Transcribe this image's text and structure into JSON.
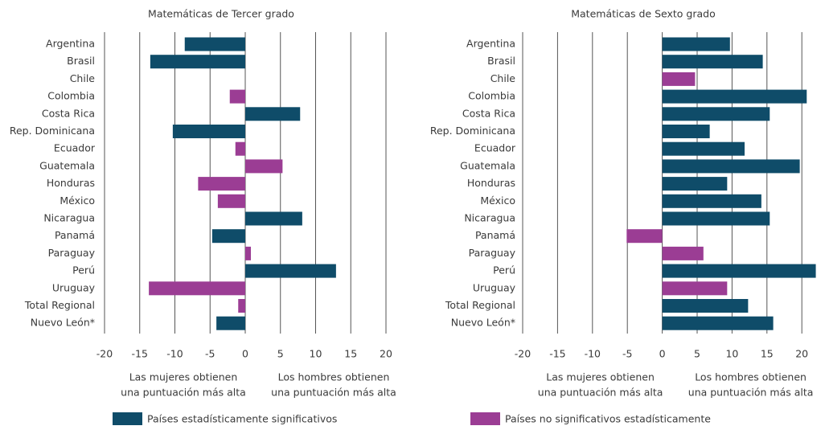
{
  "chart_data": [
    {
      "type": "bar",
      "orientation": "horizontal",
      "title": "Matemáticas de Tercer grado",
      "categories": [
        "Argentina",
        "Brasil",
        "Chile",
        "Colombia",
        "Costa Rica",
        "Rep. Dominicana",
        "Ecuador",
        "Guatemala",
        "Honduras",
        "México",
        "Nicaragua",
        "Panamá",
        "Paraguay",
        "Perú",
        "Uruguay",
        "Total Regional",
        "Nuevo León*"
      ],
      "series": [
        {
          "name": "Países estadísticamente significativos",
          "color": "#0f4c69",
          "values": [
            -8.6,
            -13.5,
            null,
            null,
            7.8,
            -10.3,
            null,
            null,
            null,
            null,
            8.1,
            -4.7,
            null,
            12.9,
            null,
            null,
            -4.1
          ]
        },
        {
          "name": "Países no significativos estadísticamente",
          "color": "#9b3d94",
          "values": [
            null,
            null,
            null,
            -2.2,
            null,
            null,
            -1.4,
            5.3,
            -6.7,
            -3.9,
            null,
            null,
            0.8,
            null,
            -13.7,
            -1.0,
            null
          ]
        }
      ],
      "xlim": [
        -20,
        20
      ],
      "xticks": [
        -20,
        -15,
        -10,
        -5,
        0,
        5,
        10,
        15,
        20
      ],
      "grid": true,
      "annotations": [
        [
          "Las mujeres obtienen",
          "una puntuación más alta"
        ],
        [
          "Los hombres obtienen",
          "una puntuación más alta"
        ]
      ]
    },
    {
      "type": "bar",
      "orientation": "horizontal",
      "title": "Matemáticas de Sexto grado",
      "categories": [
        "Argentina",
        "Brasil",
        "Chile",
        "Colombia",
        "Costa Rica",
        "Rep. Dominicana",
        "Ecuador",
        "Guatemala",
        "Honduras",
        "México",
        "Nicaragua",
        "Panamá",
        "Paraguay",
        "Perú",
        "Uruguay",
        "Total Regional",
        "Nuevo León*"
      ],
      "series": [
        {
          "name": "Países estadísticamente significativos",
          "color": "#0f4c69",
          "values": [
            9.7,
            14.4,
            null,
            20.7,
            15.4,
            6.8,
            11.8,
            19.7,
            9.3,
            14.2,
            15.4,
            null,
            null,
            22.0,
            null,
            12.3,
            15.9
          ]
        },
        {
          "name": "Países no significativos estadísticamente",
          "color": "#9b3d94",
          "values": [
            null,
            null,
            4.7,
            null,
            null,
            null,
            null,
            null,
            null,
            null,
            null,
            -5.1,
            5.9,
            null,
            9.3,
            null,
            null
          ]
        }
      ],
      "xlim": [
        -20,
        22.5
      ],
      "xticks": [
        -20,
        -15,
        -10,
        -5,
        0,
        5,
        10,
        15,
        20
      ],
      "grid": true,
      "annotations": [
        [
          "Las mujeres obtienen",
          "una puntuación más alta"
        ],
        [
          "Los hombres obtienen",
          "una puntuación más alta"
        ]
      ]
    }
  ]
}
